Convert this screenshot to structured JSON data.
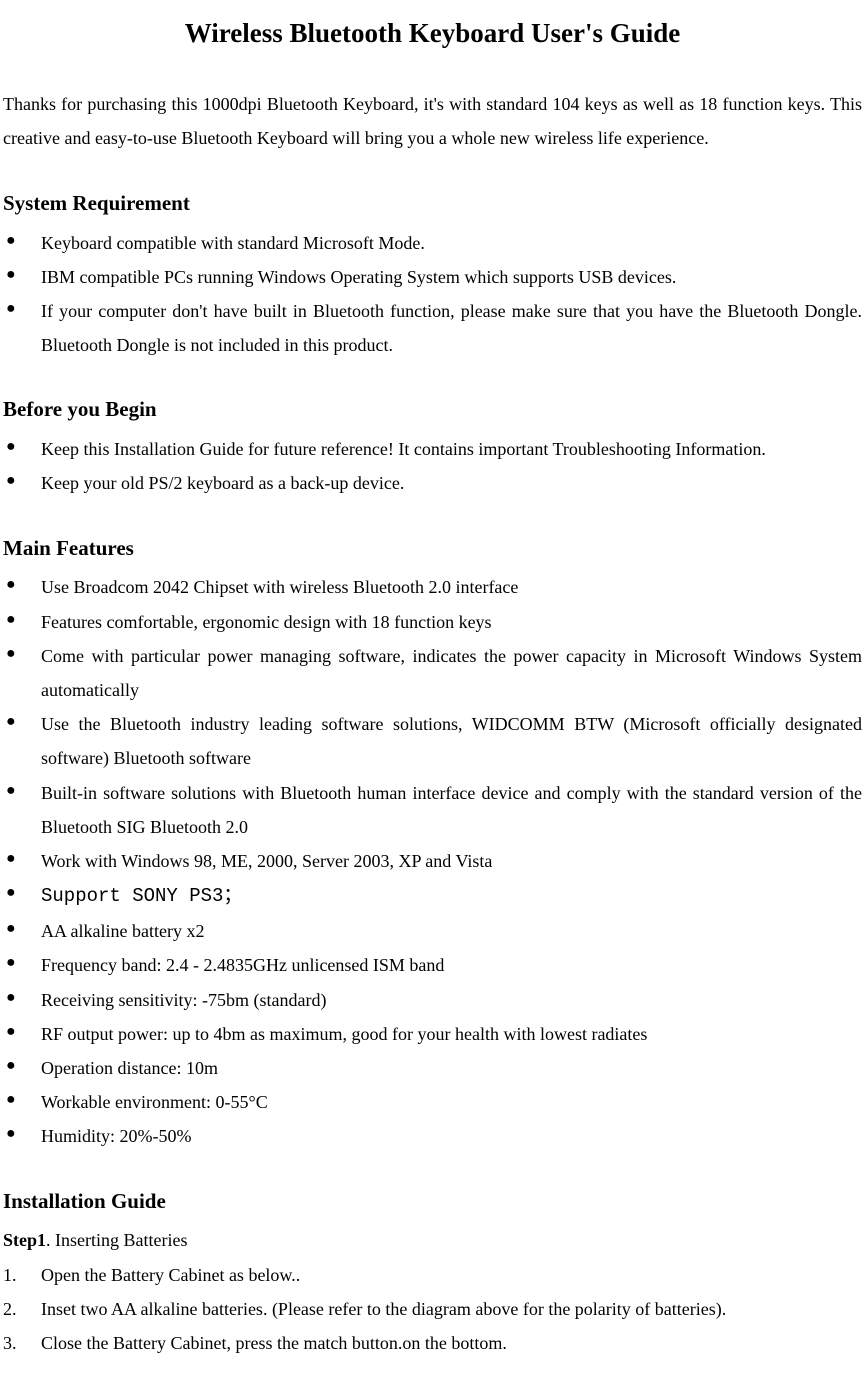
{
  "title": "Wireless Bluetooth Keyboard User's Guide",
  "intro": "Thanks for purchasing this 1000dpi Bluetooth Keyboard, it's with standard 104 keys as well as 18 function keys. This creative and easy-to-use Bluetooth Keyboard will bring you a whole new wireless life experience.",
  "sections": {
    "system_requirement": {
      "heading": "System Requirement",
      "items": [
        "Keyboard compatible with standard Microsoft Mode.",
        "IBM compatible PCs running Windows Operating System which supports USB devices.",
        "If your computer don't have built in Bluetooth function, please make sure that you have the Bluetooth Dongle. Bluetooth Dongle is not included in this product."
      ]
    },
    "before_you_begin": {
      "heading": "Before you Begin",
      "items": [
        "Keep this Installation Guide for future reference! It contains important Troubleshooting Information.",
        "Keep your old PS/2 keyboard as a back-up device."
      ]
    },
    "main_features": {
      "heading": "Main Features",
      "items": [
        "Use Broadcom 2042 Chipset with wireless Bluetooth 2.0 interface",
        "Features comfortable, ergonomic design with 18 function keys",
        "Come with particular power managing software, indicates the power capacity in Microsoft Windows System automatically",
        "Use the Bluetooth industry leading software solutions, WIDCOMM BTW (Microsoft officially designated software) Bluetooth software",
        "Built-in software solutions with Bluetooth human interface device and comply with the standard version of the Bluetooth SIG Bluetooth 2.0",
        "Work with Windows 98, ME, 2000, Server 2003, XP and Vista",
        "Support SONY PS3；",
        "AA alkaline battery x2",
        "Frequency band: 2.4 - 2.4835GHz unlicensed ISM band",
        "Receiving sensitivity: -75bm (standard)",
        "RF output power: up to 4bm as maximum, good for your health with lowest radiates",
        "Operation distance: 10m",
        "Workable environment: 0-55°C",
        "Humidity: 20%-50%"
      ]
    },
    "installation_guide": {
      "heading": "Installation Guide",
      "step_label": "Step1",
      "step_title": ". Inserting Batteries",
      "steps": [
        "Open the Battery Cabinet as below..",
        "Inset two AA alkaline batteries. (Please refer to the diagram above for the polarity of batteries).",
        "Close the Battery Cabinet, press the match button.on the bottom."
      ]
    }
  }
}
